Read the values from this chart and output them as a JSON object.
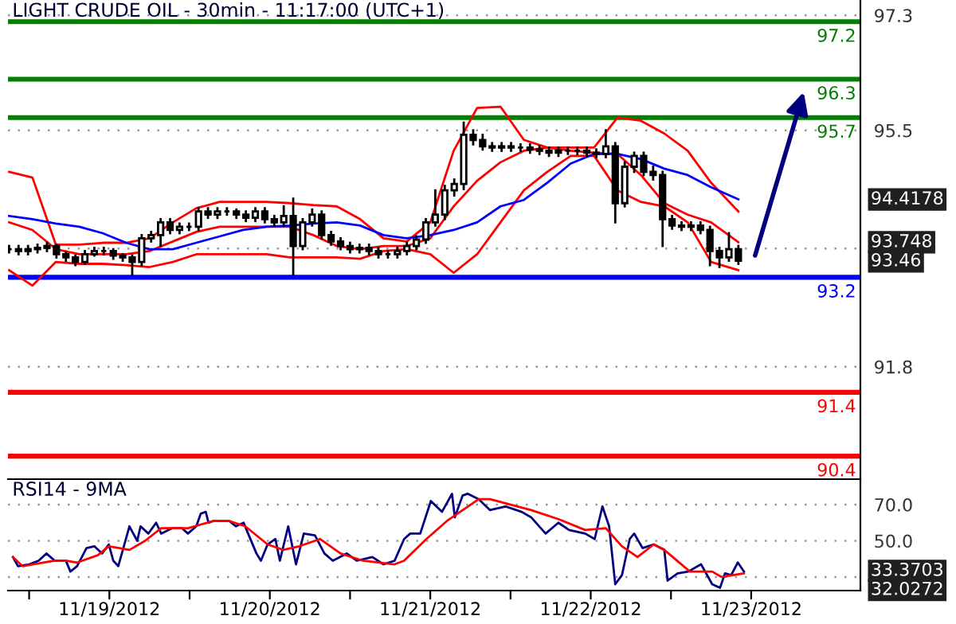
{
  "chart_data": [
    {
      "type": "candlestick",
      "title": "LIGHT CRUDE OIL - 30min - 11:17:00 (UTC+1)",
      "color": "#000000",
      "x": [
        "2012-11-18T21:00",
        "2012-11-18T22:25",
        "2012-11-18T23:50",
        "2012-11-19T01:15",
        "2012-11-19T02:40",
        "2012-11-19T04:05",
        "2012-11-19T05:30",
        "2012-11-19T06:55",
        "2012-11-19T08:20",
        "2012-11-19T09:45",
        "2012-11-19T11:10",
        "2012-11-19T12:35",
        "2012-11-19T14:00",
        "2012-11-19T15:25",
        "2012-11-19T16:50",
        "2012-11-19T18:15",
        "2012-11-19T19:40",
        "2012-11-19T21:05",
        "2012-11-19T22:30",
        "2012-11-19T23:55",
        "2012-11-20T01:20",
        "2012-11-20T02:45",
        "2012-11-20T04:10",
        "2012-11-20T05:35",
        "2012-11-20T07:00",
        "2012-11-20T08:25",
        "2012-11-20T09:50",
        "2012-11-20T11:15",
        "2012-11-20T12:40",
        "2012-11-20T14:05",
        "2012-11-20T15:30",
        "2012-11-20T16:55",
        "2012-11-20T18:20",
        "2012-11-20T19:45",
        "2012-11-20T21:10",
        "2012-11-20T22:35",
        "2012-11-21T00:00",
        "2012-11-21T01:25",
        "2012-11-21T02:50",
        "2012-11-21T04:15",
        "2012-11-21T05:40",
        "2012-11-21T07:05",
        "2012-11-21T08:30",
        "2012-11-21T09:55",
        "2012-11-21T11:20",
        "2012-11-21T12:45",
        "2012-11-21T14:10",
        "2012-11-21T15:35",
        "2012-11-21T17:00",
        "2012-11-21T18:25",
        "2012-11-21T19:50",
        "2012-11-21T21:15",
        "2012-11-21T22:40",
        "2012-11-22T00:05",
        "2012-11-22T01:30",
        "2012-11-22T02:55",
        "2012-11-22T04:20",
        "2012-11-22T05:45",
        "2012-11-22T07:10",
        "2012-11-22T08:35",
        "2012-11-22T10:00",
        "2012-11-22T11:25",
        "2012-11-22T12:50",
        "2012-11-22T14:15",
        "2012-11-22T15:40",
        "2012-11-22T17:05",
        "2012-11-22T18:30",
        "2012-11-22T19:55",
        "2012-11-22T21:20",
        "2012-11-22T22:45",
        "2012-11-23T00:10",
        "2012-11-23T01:35",
        "2012-11-23T03:00",
        "2012-11-23T04:25",
        "2012-11-23T05:50",
        "2012-11-23T07:15",
        "2012-11-23T08:40",
        "2012-11-23T10:05"
      ],
      "ohlc": [
        [
          93.64,
          93.69,
          93.59,
          93.64
        ],
        [
          93.64,
          93.69,
          93.56,
          93.61
        ],
        [
          93.61,
          93.69,
          93.56,
          93.64
        ],
        [
          93.64,
          93.71,
          93.59,
          93.66
        ],
        [
          93.66,
          93.74,
          93.61,
          93.69
        ],
        [
          93.69,
          93.71,
          93.51,
          93.56
        ],
        [
          93.56,
          93.59,
          93.46,
          93.51
        ],
        [
          93.51,
          93.54,
          93.39,
          93.44
        ],
        [
          93.44,
          93.61,
          93.41,
          93.56
        ],
        [
          93.56,
          93.66,
          93.54,
          93.61
        ],
        [
          93.61,
          93.66,
          93.56,
          93.61
        ],
        [
          93.61,
          93.64,
          93.49,
          93.54
        ],
        [
          93.54,
          93.56,
          93.46,
          93.51
        ],
        [
          93.51,
          93.54,
          93.24,
          93.44
        ],
        [
          93.44,
          93.86,
          93.39,
          93.81
        ],
        [
          93.81,
          93.91,
          93.76,
          93.86
        ],
        [
          93.86,
          94.11,
          93.69,
          94.06
        ],
        [
          94.06,
          94.11,
          93.89,
          93.94
        ],
        [
          93.94,
          94.04,
          93.89,
          93.99
        ],
        [
          93.99,
          94.04,
          93.94,
          93.99
        ],
        [
          93.99,
          94.28,
          93.94,
          94.23
        ],
        [
          94.23,
          94.28,
          94.13,
          94.18
        ],
        [
          94.18,
          94.28,
          94.13,
          94.23
        ],
        [
          94.23,
          94.28,
          94.18,
          94.23
        ],
        [
          94.23,
          94.26,
          94.13,
          94.18
        ],
        [
          94.18,
          94.23,
          94.08,
          94.13
        ],
        [
          94.13,
          94.28,
          94.08,
          94.23
        ],
        [
          94.23,
          94.28,
          94.06,
          94.11
        ],
        [
          94.11,
          94.16,
          94.01,
          94.06
        ],
        [
          94.06,
          94.31,
          94.01,
          94.16
        ],
        [
          94.16,
          94.43,
          93.24,
          93.69
        ],
        [
          93.69,
          94.11,
          93.64,
          94.06
        ],
        [
          94.06,
          94.26,
          94.01,
          94.18
        ],
        [
          94.18,
          94.23,
          93.81,
          93.86
        ],
        [
          93.86,
          93.91,
          93.71,
          93.76
        ],
        [
          93.76,
          93.81,
          93.64,
          93.69
        ],
        [
          93.69,
          93.74,
          93.59,
          93.64
        ],
        [
          93.64,
          93.71,
          93.59,
          93.66
        ],
        [
          93.66,
          93.71,
          93.56,
          93.61
        ],
        [
          93.61,
          93.66,
          93.51,
          93.56
        ],
        [
          93.56,
          93.61,
          93.51,
          93.56
        ],
        [
          93.56,
          93.66,
          93.51,
          93.61
        ],
        [
          93.61,
          93.74,
          93.56,
          93.69
        ],
        [
          93.69,
          93.84,
          93.64,
          93.79
        ],
        [
          93.79,
          94.11,
          93.74,
          94.06
        ],
        [
          94.06,
          94.56,
          94.01,
          94.18
        ],
        [
          94.18,
          94.63,
          94.11,
          94.56
        ],
        [
          94.56,
          94.73,
          94.48,
          94.66
        ],
        [
          94.66,
          95.62,
          94.58,
          95.43
        ],
        [
          95.43,
          95.5,
          95.28,
          95.35
        ],
        [
          95.35,
          95.43,
          95.2,
          95.25
        ],
        [
          95.25,
          95.3,
          95.18,
          95.23
        ],
        [
          95.23,
          95.3,
          95.18,
          95.25
        ],
        [
          95.25,
          95.3,
          95.18,
          95.23
        ],
        [
          95.23,
          95.28,
          95.18,
          95.23
        ],
        [
          95.23,
          95.28,
          95.15,
          95.2
        ],
        [
          95.2,
          95.25,
          95.13,
          95.18
        ],
        [
          95.18,
          95.23,
          95.1,
          95.15
        ],
        [
          95.15,
          95.23,
          95.1,
          95.18
        ],
        [
          95.18,
          95.23,
          95.13,
          95.18
        ],
        [
          95.18,
          95.23,
          95.13,
          95.18
        ],
        [
          95.18,
          95.23,
          95.1,
          95.15
        ],
        [
          95.15,
          95.2,
          95.08,
          95.13
        ],
        [
          95.13,
          95.5,
          95.08,
          95.25
        ],
        [
          95.25,
          95.3,
          94.06,
          94.36
        ],
        [
          94.36,
          95.0,
          94.31,
          94.93
        ],
        [
          94.93,
          95.15,
          94.85,
          95.1
        ],
        [
          95.1,
          95.15,
          94.8,
          94.85
        ],
        [
          94.85,
          94.93,
          94.73,
          94.8
        ],
        [
          94.8,
          94.85,
          93.69,
          94.11
        ],
        [
          94.11,
          94.16,
          93.96,
          94.01
        ],
        [
          94.01,
          94.06,
          93.94,
          93.99
        ],
        [
          93.99,
          94.06,
          93.94,
          94.01
        ],
        [
          94.01,
          94.06,
          93.89,
          93.94
        ],
        [
          93.94,
          93.99,
          93.39,
          93.61
        ],
        [
          93.61,
          93.66,
          93.36,
          93.51
        ],
        [
          93.51,
          93.89,
          93.46,
          93.64
        ],
        [
          93.64,
          93.69,
          93.41,
          93.46
        ]
      ],
      "series": [
        {
          "type": "line",
          "color": "#ff0000",
          "x": [
            "2012-11-18T21:00",
            "2012-11-19T00:30",
            "2012-11-19T04:00",
            "2012-11-19T07:30",
            "2012-11-19T11:00",
            "2012-11-19T14:30",
            "2012-11-19T18:00",
            "2012-11-19T21:30",
            "2012-11-20T01:00",
            "2012-11-20T04:30",
            "2012-11-20T08:00",
            "2012-11-20T11:30",
            "2012-11-20T15:00",
            "2012-11-20T18:30",
            "2012-11-20T22:00",
            "2012-11-21T01:30",
            "2012-11-21T05:00",
            "2012-11-21T08:30",
            "2012-11-21T12:00",
            "2012-11-21T15:30",
            "2012-11-21T19:00",
            "2012-11-21T22:30",
            "2012-11-22T02:00",
            "2012-11-22T05:30",
            "2012-11-22T09:00",
            "2012-11-22T12:30",
            "2012-11-22T16:00",
            "2012-11-22T19:30",
            "2012-11-22T23:00",
            "2012-11-23T02:30",
            "2012-11-23T06:00",
            "2012-11-23T10:05"
          ],
          "values": [
            94.85,
            94.76,
            93.71,
            93.71,
            93.74,
            93.74,
            93.81,
            94.06,
            94.28,
            94.38,
            94.38,
            94.38,
            94.36,
            94.33,
            94.31,
            94.11,
            93.81,
            93.76,
            94.06,
            95.18,
            95.85,
            95.87,
            95.35,
            95.23,
            95.23,
            95.23,
            95.7,
            95.65,
            95.45,
            95.18,
            94.68,
            94.23
          ]
        },
        {
          "type": "line",
          "color": "#ff0000",
          "x": [
            "2012-11-18T21:00",
            "2012-11-19T00:30",
            "2012-11-19T04:00",
            "2012-11-19T07:30",
            "2012-11-19T11:00",
            "2012-11-19T14:30",
            "2012-11-19T18:00",
            "2012-11-19T21:30",
            "2012-11-20T01:00",
            "2012-11-20T04:30",
            "2012-11-20T08:00",
            "2012-11-20T11:30",
            "2012-11-20T15:00",
            "2012-11-20T18:30",
            "2012-11-20T22:00",
            "2012-11-21T01:30",
            "2012-11-21T05:00",
            "2012-11-21T08:30",
            "2012-11-21T12:00",
            "2012-11-21T15:30",
            "2012-11-21T19:00",
            "2012-11-21T22:30",
            "2012-11-22T02:00",
            "2012-11-22T05:30",
            "2012-11-22T09:00",
            "2012-11-22T12:30",
            "2012-11-22T16:00",
            "2012-11-22T19:30",
            "2012-11-22T23:00",
            "2012-11-23T02:30",
            "2012-11-23T06:00",
            "2012-11-23T10:05"
          ],
          "values": [
            94.06,
            93.94,
            93.64,
            93.56,
            93.56,
            93.56,
            93.61,
            93.76,
            93.91,
            93.99,
            93.99,
            93.99,
            93.99,
            93.86,
            93.69,
            93.64,
            93.69,
            93.69,
            93.81,
            94.31,
            94.71,
            95.0,
            95.18,
            95.23,
            95.18,
            95.15,
            95.13,
            94.8,
            94.36,
            94.18,
            94.06,
            93.75
          ]
        },
        {
          "type": "line",
          "color": "#ff0000",
          "x": [
            "2012-11-18T21:00",
            "2012-11-19T00:30",
            "2012-11-19T04:00",
            "2012-11-19T07:30",
            "2012-11-19T11:00",
            "2012-11-19T14:30",
            "2012-11-19T18:00",
            "2012-11-19T21:30",
            "2012-11-20T01:00",
            "2012-11-20T04:30",
            "2012-11-20T08:00",
            "2012-11-20T11:30",
            "2012-11-20T15:00",
            "2012-11-20T18:30",
            "2012-11-20T22:00",
            "2012-11-21T01:30",
            "2012-11-21T05:00",
            "2012-11-21T08:30",
            "2012-11-21T12:00",
            "2012-11-21T15:30",
            "2012-11-21T19:00",
            "2012-11-21T22:30",
            "2012-11-22T02:00",
            "2012-11-22T05:30",
            "2012-11-22T09:00",
            "2012-11-22T12:30",
            "2012-11-22T16:00",
            "2012-11-22T19:30",
            "2012-11-22T23:00",
            "2012-11-23T02:30",
            "2012-11-23T06:00",
            "2012-11-23T10:05"
          ],
          "values": [
            93.31,
            93.07,
            93.44,
            93.41,
            93.41,
            93.39,
            93.36,
            93.44,
            93.56,
            93.56,
            93.56,
            93.56,
            93.51,
            93.51,
            93.51,
            93.49,
            93.61,
            93.64,
            93.56,
            93.27,
            93.56,
            94.06,
            94.56,
            94.85,
            95.1,
            95.1,
            94.56,
            94.38,
            94.31,
            94.06,
            93.44,
            93.31
          ]
        },
        {
          "type": "line",
          "color": "#0000ff",
          "x": [
            "2012-11-18T21:00",
            "2012-11-19T00:30",
            "2012-11-19T04:00",
            "2012-11-19T07:30",
            "2012-11-19T11:00",
            "2012-11-19T14:30",
            "2012-11-19T18:00",
            "2012-11-19T21:30",
            "2012-11-20T01:00",
            "2012-11-20T04:30",
            "2012-11-20T08:00",
            "2012-11-20T11:30",
            "2012-11-20T15:00",
            "2012-11-20T18:30",
            "2012-11-20T22:00",
            "2012-11-21T01:30",
            "2012-11-21T05:00",
            "2012-11-21T08:30",
            "2012-11-21T12:00",
            "2012-11-21T15:30",
            "2012-11-21T19:00",
            "2012-11-21T22:30",
            "2012-11-22T02:00",
            "2012-11-22T05:30",
            "2012-11-22T09:00",
            "2012-11-22T12:30",
            "2012-11-22T16:00",
            "2012-11-22T19:30",
            "2012-11-22T23:00",
            "2012-11-23T02:30",
            "2012-11-23T06:00",
            "2012-11-23T10:05"
          ],
          "values": [
            94.16,
            94.11,
            94.04,
            93.99,
            93.89,
            93.74,
            93.64,
            93.64,
            93.74,
            93.84,
            93.94,
            93.99,
            94.01,
            94.04,
            94.06,
            94.01,
            93.86,
            93.81,
            93.86,
            93.94,
            94.06,
            94.31,
            94.41,
            94.68,
            94.98,
            95.13,
            95.13,
            95.05,
            94.9,
            94.8,
            94.61,
            94.42
          ]
        }
      ],
      "ref_lines": [
        {
          "axis": "y",
          "value": 97.2,
          "label": "97.2",
          "color": "#008000"
        },
        {
          "axis": "y",
          "value": 96.3,
          "label": "96.3",
          "color": "#008000"
        },
        {
          "axis": "y",
          "value": 95.7,
          "label": "95.7",
          "color": "#008000"
        },
        {
          "axis": "y",
          "value": 93.2,
          "label": "93.2",
          "color": "#0000ff"
        },
        {
          "axis": "y",
          "value": 91.4,
          "label": "91.4",
          "color": "#ff0000"
        },
        {
          "axis": "y",
          "value": 90.4,
          "label": "90.4",
          "color": "#ff0000"
        }
      ],
      "annotations": [
        "94.4178",
        "93.748",
        "93.46"
      ],
      "xlim": [
        "2012-11-18T20:50",
        "2012-11-24T04:20"
      ],
      "ylim": [
        90.04,
        97.54
      ],
      "yticks": [
        97.3,
        95.5,
        {
          "value": 93.65,
          "label": null
        },
        91.8
      ],
      "grid": "y",
      "tick_labels": "y"
    },
    {
      "type": "line",
      "title": "RSI14 - 9MA",
      "series": [
        {
          "color": "#000080",
          "x": [
            "2012-11-18T21:35",
            "2012-11-18T22:20",
            "2012-11-19T00:00",
            "2012-11-19T01:25",
            "2012-11-19T02:35",
            "2012-11-19T03:50",
            "2012-11-19T05:30",
            "2012-11-19T06:10",
            "2012-11-19T07:10",
            "2012-11-19T08:35",
            "2012-11-19T09:45",
            "2012-11-19T10:55",
            "2012-11-19T11:55",
            "2012-11-19T12:35",
            "2012-11-19T13:20",
            "2012-11-19T15:00",
            "2012-11-19T16:10",
            "2012-11-19T16:40",
            "2012-11-19T17:50",
            "2012-11-19T19:00",
            "2012-11-19T19:45",
            "2012-11-19T21:25",
            "2012-11-19T22:50",
            "2012-11-19T23:45",
            "2012-11-20T01:00",
            "2012-11-20T01:40",
            "2012-11-20T02:25",
            "2012-11-20T02:50",
            "2012-11-20T03:35",
            "2012-11-20T05:55",
            "2012-11-20T06:55",
            "2012-11-20T08:05",
            "2012-11-20T08:45",
            "2012-11-20T10:00",
            "2012-11-20T10:40",
            "2012-11-20T11:40",
            "2012-11-20T12:50",
            "2012-11-20T13:30",
            "2012-11-20T14:45",
            "2012-11-20T15:55",
            "2012-11-20T17:05",
            "2012-11-20T18:45",
            "2012-11-20T20:10",
            "2012-11-20T21:25",
            "2012-11-20T23:30",
            "2012-11-21T01:00",
            "2012-11-21T03:20",
            "2012-11-21T05:00",
            "2012-11-21T06:40",
            "2012-11-21T08:05",
            "2012-11-21T09:00",
            "2012-11-21T10:30",
            "2012-11-21T12:05",
            "2012-11-21T13:45",
            "2012-11-21T15:15",
            "2012-11-21T15:40",
            "2012-11-21T16:50",
            "2012-11-21T17:35",
            "2012-11-21T19:15",
            "2012-11-21T20:55",
            "2012-11-21T23:15",
            "2012-11-22T01:40",
            "2012-11-22T03:05",
            "2012-11-22T05:15",
            "2012-11-22T07:10",
            "2012-11-22T08:45",
            "2012-11-22T11:10",
            "2012-11-22T12:35",
            "2012-11-22T13:45",
            "2012-11-22T14:45",
            "2012-11-22T15:40",
            "2012-11-22T16:40",
            "2012-11-22T17:50",
            "2012-11-22T18:30",
            "2012-11-22T19:45",
            "2012-11-22T21:25",
            "2012-11-22T23:00",
            "2012-11-22T23:30",
            "2012-11-23T01:00",
            "2012-11-23T02:35",
            "2012-11-23T04:30",
            "2012-11-23T06:10",
            "2012-11-23T07:20",
            "2012-11-23T08:05",
            "2012-11-23T09:00",
            "2012-11-23T10:00",
            "2012-11-23T10:55"
          ],
          "values": [
            41,
            36,
            37,
            39,
            43,
            39,
            39,
            33,
            36,
            46,
            47,
            43,
            48,
            39,
            36,
            58,
            50,
            58,
            54,
            60,
            54,
            57,
            57,
            54,
            58,
            65,
            66,
            60,
            61,
            61,
            58,
            60,
            54,
            43,
            39,
            48,
            51,
            39,
            58,
            37,
            54,
            53,
            43,
            39,
            43,
            39,
            41,
            37,
            39,
            51,
            54,
            54,
            72,
            66,
            76,
            63,
            75,
            76,
            73,
            67,
            69,
            66,
            63,
            54,
            60,
            56,
            54,
            51,
            69,
            58,
            26,
            31,
            51,
            54,
            46,
            48,
            45,
            28,
            32,
            33,
            37,
            26,
            24,
            32,
            31,
            38,
            33
          ]
        },
        {
          "color": "#ff0000",
          "x": [
            "2012-11-18T21:35",
            "2012-11-18T23:00",
            "2012-11-19T03:50",
            "2012-11-19T05:30",
            "2012-11-19T07:10",
            "2012-11-19T10:15",
            "2012-11-19T11:55",
            "2012-11-19T15:00",
            "2012-11-19T17:20",
            "2012-11-19T19:45",
            "2012-11-19T23:45",
            "2012-11-20T03:35",
            "2012-11-20T05:55",
            "2012-11-20T08:20",
            "2012-11-20T11:40",
            "2012-11-20T14:00",
            "2012-11-20T16:25",
            "2012-11-20T19:30",
            "2012-11-20T22:35",
            "2012-11-21T01:55",
            "2012-11-21T06:40",
            "2012-11-21T08:05",
            "2012-11-21T11:25",
            "2012-11-21T14:30",
            "2012-11-21T19:15",
            "2012-11-21T20:55",
            "2012-11-22T03:05",
            "2012-11-22T07:10",
            "2012-11-22T11:10",
            "2012-11-22T14:15",
            "2012-11-22T16:40",
            "2012-11-22T19:00",
            "2012-11-22T21:25",
            "2012-11-22T23:00",
            "2012-11-23T02:50",
            "2012-11-23T06:10",
            "2012-11-23T07:35",
            "2012-11-23T10:55"
          ],
          "values": [
            41,
            36,
            39,
            39,
            38,
            42,
            47,
            45,
            50,
            57,
            57,
            61,
            61,
            58,
            48,
            45,
            47,
            51,
            43,
            39,
            37,
            39,
            51,
            61,
            73,
            73,
            67,
            62,
            56,
            57,
            47,
            41,
            48,
            45,
            33,
            33,
            30,
            32
          ]
        }
      ],
      "annotations": [
        "33.3703",
        "32.0272"
      ],
      "xlim": [
        "2012-11-18T20:50",
        "2012-11-24T04:20"
      ],
      "ylim": [
        22.5,
        83.2
      ],
      "xticks": [
        {
          "value": "2012-11-19T00:00",
          "label": null
        },
        {
          "value": "2012-11-19T12:00",
          "label": "11/19/2012"
        },
        {
          "value": "2012-11-20T00:00",
          "label": null
        },
        {
          "value": "2012-11-20T12:00",
          "label": "11/20/2012"
        },
        {
          "value": "2012-11-21T00:00",
          "label": null
        },
        {
          "value": "2012-11-21T12:00",
          "label": "11/21/2012"
        },
        {
          "value": "2012-11-22T00:00",
          "label": null
        },
        {
          "value": "2012-11-22T12:00",
          "label": "11/22/2012"
        },
        {
          "value": "2012-11-23T00:00",
          "label": null
        },
        {
          "value": "2012-11-23T12:00",
          "label": "11/23/2012"
        }
      ],
      "yticks": [
        {
          "value": 70,
          "label": "70.0"
        },
        {
          "value": 50,
          "label": "50.0"
        },
        {
          "value": 30,
          "label": null
        }
      ],
      "grid": "y"
    }
  ]
}
